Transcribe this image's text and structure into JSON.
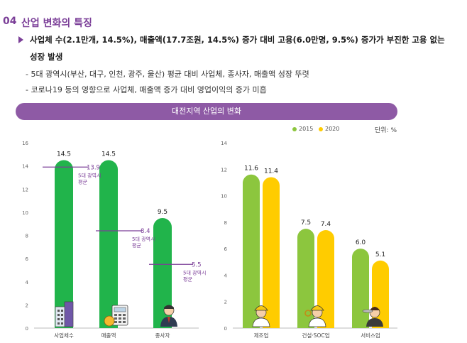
{
  "section": {
    "number": "04",
    "title": "산업 변화의 특징"
  },
  "bullets": {
    "main_line1": "사업체 수(2.1만개, 14.5%), 매출액(17.7조원, 14.5%) 증가 대비 고용(6.0만명, 9.5%) 증가가 부진한 고용 없는",
    "main_line2": "성장 발생",
    "sub1": "- 5대 광역시(부산, 대구, 인천, 광주, 울산) 평균 대비 사업체, 종사자, 매출액 성장 뚜렷",
    "sub2": "- 코로나19 등의 영향으로 사업체, 매출액 증가 대비 영업이익의 증가 미흡"
  },
  "banner": "대전지역 산업의 변화",
  "unit": "단위: %",
  "colors": {
    "accent": "#7b3f98",
    "green": "#21b44b",
    "lightgreen": "#8cc63e",
    "yellow": "#ffcc00"
  },
  "chart_data": [
    {
      "type": "bar",
      "categories": [
        "사업체수",
        "매출액",
        "종사자"
      ],
      "values": [
        14.5,
        14.5,
        9.5
      ],
      "value_labels": [
        "14.5",
        "14.5",
        "9.5"
      ],
      "benchmark": {
        "label": "5대 광역시 평균",
        "values": [
          13.9,
          8.4,
          5.5
        ],
        "value_labels": [
          "13.9",
          "8.4",
          "5.5"
        ]
      },
      "benchmark_label_lines": [
        "5대 광역시",
        "평균"
      ],
      "yticks": [
        "0",
        "2",
        "4",
        "6",
        "8",
        "10",
        "12",
        "14",
        "16"
      ],
      "ylim": [
        0,
        16
      ],
      "title": "",
      "xlabel": "",
      "ylabel": "",
      "grid": false
    },
    {
      "type": "bar",
      "categories": [
        "제조업",
        "건설·SOC업",
        "서비스업"
      ],
      "series": [
        {
          "name": "2015",
          "values": [
            11.6,
            7.5,
            6.0
          ],
          "value_labels": [
            "11.6",
            "7.5",
            "6.0"
          ]
        },
        {
          "name": "2020",
          "values": [
            11.4,
            7.4,
            5.1
          ],
          "value_labels": [
            "11.4",
            "7.4",
            "5.1"
          ]
        }
      ],
      "yticks": [
        "0",
        "2",
        "4",
        "6",
        "8",
        "10",
        "12",
        "14"
      ],
      "ylim": [
        0,
        14
      ],
      "title": "",
      "xlabel": "",
      "ylabel": "",
      "legend": "top-right",
      "grid": false
    }
  ]
}
